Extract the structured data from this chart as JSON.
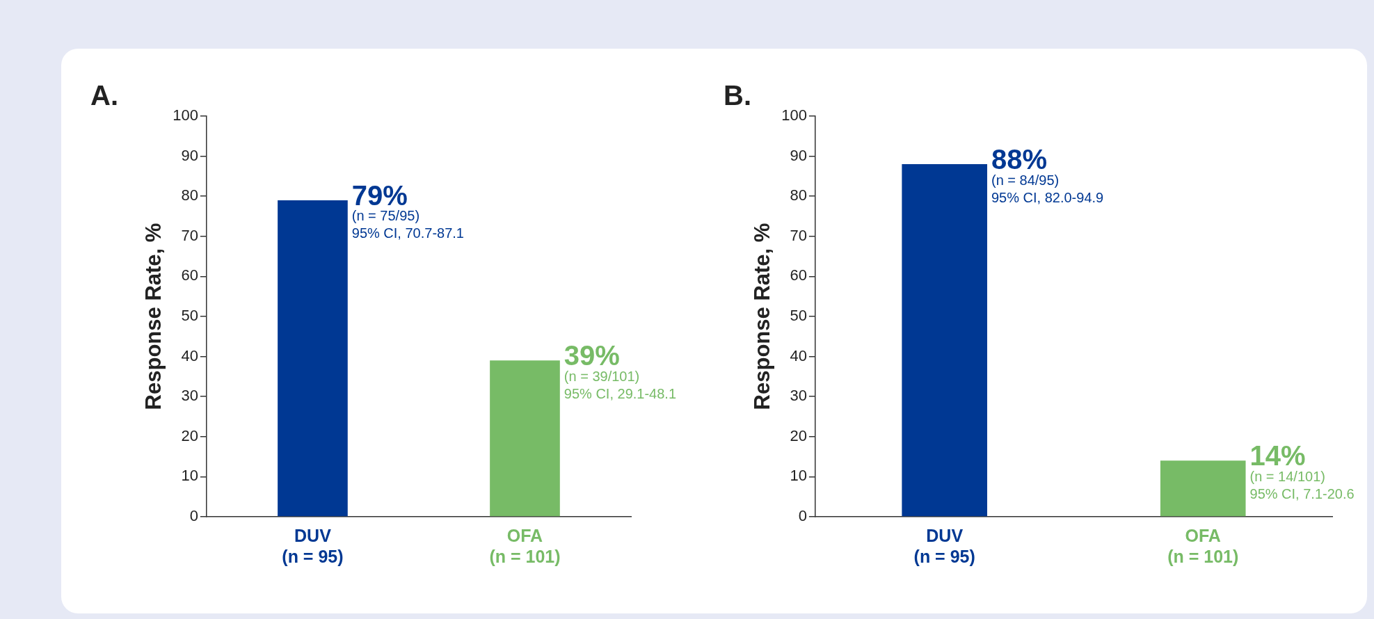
{
  "chart_data": [
    {
      "type": "bar",
      "title": "A.",
      "ylabel": "Response Rate, %",
      "categories": [
        "DUV\n(n = 95)",
        "OFA\n(n = 101)"
      ],
      "values": [
        79,
        39
      ],
      "colors": [
        "#003893",
        "#77bb66"
      ],
      "ylim": [
        0,
        100
      ],
      "yticks": [
        0,
        10,
        20,
        30,
        40,
        50,
        60,
        70,
        80,
        90,
        100
      ],
      "annotations": [
        "79%",
        "(n = 75/95)",
        "95% CI, 70.7-87.1",
        "39%",
        "(n = 39/101)",
        "95% CI, 29.1-48.1"
      ]
    },
    {
      "type": "bar",
      "title": "B.",
      "ylabel": "Response Rate, %",
      "categories": [
        "DUV\n(n = 95)",
        "OFA\n(n = 101)"
      ],
      "values": [
        88,
        14
      ],
      "colors": [
        "#003893",
        "#77bb66"
      ],
      "ylim": [
        0,
        100
      ],
      "yticks": [
        0,
        10,
        20,
        30,
        40,
        50,
        60,
        70,
        80,
        90,
        100
      ],
      "annotations": [
        "88%",
        "(n = 84/95)",
        "95% CI, 82.0-94.9",
        "14%",
        "(n = 14/101)",
        "95% CI, 7.1-20.6"
      ]
    }
  ]
}
